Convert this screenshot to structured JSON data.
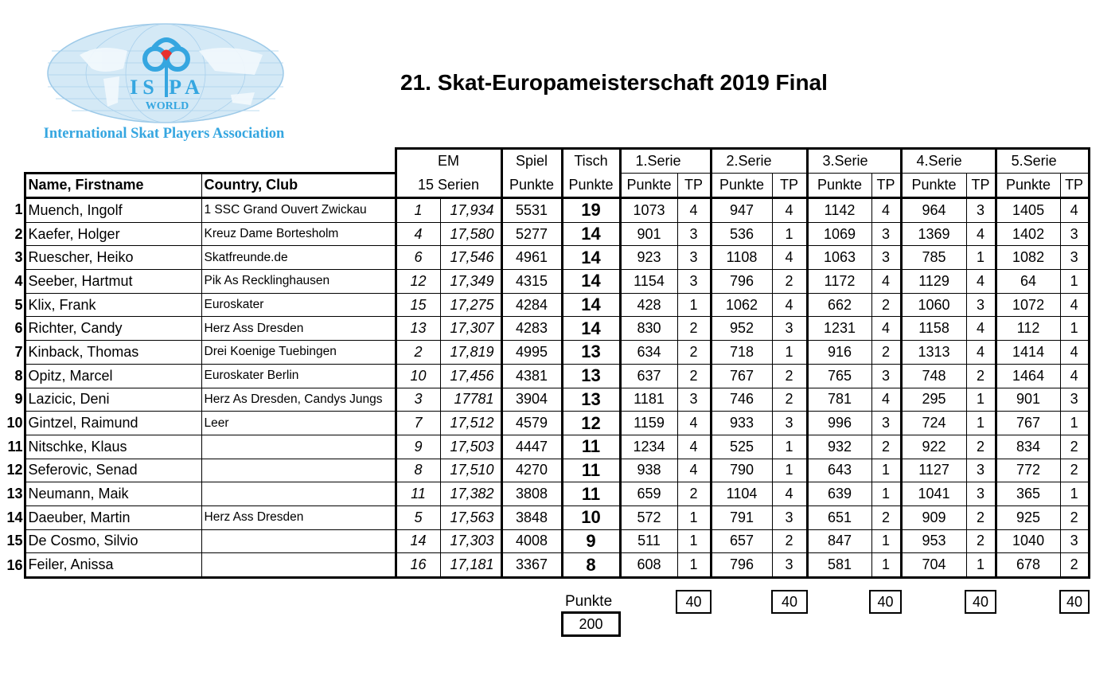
{
  "logo": {
    "top_text": "ISPA",
    "sub_text": "WORLD",
    "org_name": "International Skat Players Association",
    "colors": {
      "blue": "#35a6e0",
      "heart": "#e8312e",
      "map": "#d4e9f6"
    }
  },
  "title": "21. Skat-Europameisterschaft 2019 Final",
  "headers": {
    "em_top": "EM",
    "em_bottom": "15 Serien",
    "spiel_top": "Spiel",
    "spiel_bottom": "Punkte",
    "tisch_top": "Tisch",
    "tisch_bottom": "Punkte",
    "name": "Name, Firstname",
    "club": "Country, Club",
    "series": [
      "1.Serie",
      "2.Serie",
      "3.Serie",
      "4.Serie",
      "5.Serie"
    ],
    "series_points": "Punkte",
    "series_tp": "TP"
  },
  "rows": [
    {
      "rank": "1",
      "name": "Muench, Ingolf",
      "club": "1 SSC Grand Ouvert Zwickau",
      "em_rank": "1",
      "em_score": "17,934",
      "spiel": "5531",
      "tisch": "19",
      "series": [
        [
          "1073",
          "4"
        ],
        [
          "947",
          "4"
        ],
        [
          "1142",
          "4"
        ],
        [
          "964",
          "3"
        ],
        [
          "1405",
          "4"
        ]
      ]
    },
    {
      "rank": "2",
      "name": "Kaefer, Holger",
      "club": "Kreuz Dame Bortesholm",
      "em_rank": "4",
      "em_score": "17,580",
      "spiel": "5277",
      "tisch": "14",
      "series": [
        [
          "901",
          "3"
        ],
        [
          "536",
          "1"
        ],
        [
          "1069",
          "3"
        ],
        [
          "1369",
          "4"
        ],
        [
          "1402",
          "3"
        ]
      ]
    },
    {
      "rank": "3",
      "name": "Ruescher, Heiko",
      "club": "Skatfreunde.de",
      "em_rank": "6",
      "em_score": "17,546",
      "spiel": "4961",
      "tisch": "14",
      "series": [
        [
          "923",
          "3"
        ],
        [
          "1108",
          "4"
        ],
        [
          "1063",
          "3"
        ],
        [
          "785",
          "1"
        ],
        [
          "1082",
          "3"
        ]
      ]
    },
    {
      "rank": "4",
      "name": "Seeber, Hartmut",
      "club": "Pik  As Recklinghausen",
      "em_rank": "12",
      "em_score": "17,349",
      "spiel": "4315",
      "tisch": "14",
      "series": [
        [
          "1154",
          "3"
        ],
        [
          "796",
          "2"
        ],
        [
          "1172",
          "4"
        ],
        [
          "1129",
          "4"
        ],
        [
          "64",
          "1"
        ]
      ]
    },
    {
      "rank": "5",
      "name": "Klix, Frank",
      "club": "Euroskater",
      "em_rank": "15",
      "em_score": "17,275",
      "spiel": "4284",
      "tisch": "14",
      "series": [
        [
          "428",
          "1"
        ],
        [
          "1062",
          "4"
        ],
        [
          "662",
          "2"
        ],
        [
          "1060",
          "3"
        ],
        [
          "1072",
          "4"
        ]
      ]
    },
    {
      "rank": "6",
      "name": "Richter, Candy",
      "club": "Herz Ass Dresden",
      "em_rank": "13",
      "em_score": "17,307",
      "spiel": "4283",
      "tisch": "14",
      "series": [
        [
          "830",
          "2"
        ],
        [
          "952",
          "3"
        ],
        [
          "1231",
          "4"
        ],
        [
          "1158",
          "4"
        ],
        [
          "112",
          "1"
        ]
      ]
    },
    {
      "rank": "7",
      "name": "Kinback, Thomas",
      "club": "Drei Koenige Tuebingen",
      "em_rank": "2",
      "em_score": "17,819",
      "spiel": "4995",
      "tisch": "13",
      "series": [
        [
          "634",
          "2"
        ],
        [
          "718",
          "1"
        ],
        [
          "916",
          "2"
        ],
        [
          "1313",
          "4"
        ],
        [
          "1414",
          "4"
        ]
      ]
    },
    {
      "rank": "8",
      "name": "Opitz, Marcel",
      "club": "Euroskater Berlin",
      "em_rank": "10",
      "em_score": "17,456",
      "spiel": "4381",
      "tisch": "13",
      "series": [
        [
          "637",
          "2"
        ],
        [
          "767",
          "2"
        ],
        [
          "765",
          "3"
        ],
        [
          "748",
          "2"
        ],
        [
          "1464",
          "4"
        ]
      ]
    },
    {
      "rank": "9",
      "name": "Lazicic, Deni",
      "club": "Herz As Dresden, Candys Jungs",
      "em_rank": "3",
      "em_score": "17781",
      "spiel": "3904",
      "tisch": "13",
      "series": [
        [
          "1181",
          "3"
        ],
        [
          "746",
          "2"
        ],
        [
          "781",
          "4"
        ],
        [
          "295",
          "1"
        ],
        [
          "901",
          "3"
        ]
      ]
    },
    {
      "rank": "10",
      "name": "Gintzel, Raimund",
      "club": "Leer",
      "em_rank": "7",
      "em_score": "17,512",
      "spiel": "4579",
      "tisch": "12",
      "series": [
        [
          "1159",
          "4"
        ],
        [
          "933",
          "3"
        ],
        [
          "996",
          "3"
        ],
        [
          "724",
          "1"
        ],
        [
          "767",
          "1"
        ]
      ]
    },
    {
      "rank": "11",
      "name": "Nitschke, Klaus",
      "club": "",
      "em_rank": "9",
      "em_score": "17,503",
      "spiel": "4447",
      "tisch": "11",
      "series": [
        [
          "1234",
          "4"
        ],
        [
          "525",
          "1"
        ],
        [
          "932",
          "2"
        ],
        [
          "922",
          "2"
        ],
        [
          "834",
          "2"
        ]
      ]
    },
    {
      "rank": "12",
      "name": "Seferovic, Senad",
      "club": "",
      "em_rank": "8",
      "em_score": "17,510",
      "spiel": "4270",
      "tisch": "11",
      "series": [
        [
          "938",
          "4"
        ],
        [
          "790",
          "1"
        ],
        [
          "643",
          "1"
        ],
        [
          "1127",
          "3"
        ],
        [
          "772",
          "2"
        ]
      ]
    },
    {
      "rank": "13",
      "name": "Neumann, Maik",
      "club": "",
      "em_rank": "11",
      "em_score": "17,382",
      "spiel": "3808",
      "tisch": "11",
      "series": [
        [
          "659",
          "2"
        ],
        [
          "1104",
          "4"
        ],
        [
          "639",
          "1"
        ],
        [
          "1041",
          "3"
        ],
        [
          "365",
          "1"
        ]
      ]
    },
    {
      "rank": "14",
      "name": "Daeuber, Martin",
      "club": "Herz Ass Dresden",
      "em_rank": "5",
      "em_score": "17,563",
      "spiel": "3848",
      "tisch": "10",
      "series": [
        [
          "572",
          "1"
        ],
        [
          "791",
          "3"
        ],
        [
          "651",
          "2"
        ],
        [
          "909",
          "2"
        ],
        [
          "925",
          "2"
        ]
      ]
    },
    {
      "rank": "15",
      "name": "De Cosmo, Silvio",
      "club": "",
      "em_rank": "14",
      "em_score": "17,303",
      "spiel": "4008",
      "tisch": "9",
      "series": [
        [
          "511",
          "1"
        ],
        [
          "657",
          "2"
        ],
        [
          "847",
          "1"
        ],
        [
          "953",
          "2"
        ],
        [
          "1040",
          "3"
        ]
      ]
    },
    {
      "rank": "16",
      "name": "Feiler, Anissa",
      "club": "",
      "em_rank": "16",
      "em_score": "17,181",
      "spiel": "3367",
      "tisch": "8",
      "series": [
        [
          "608",
          "1"
        ],
        [
          "796",
          "3"
        ],
        [
          "581",
          "1"
        ],
        [
          "704",
          "1"
        ],
        [
          "678",
          "2"
        ]
      ]
    }
  ],
  "footer": {
    "label": "Punkte",
    "total": "200",
    "series_tp_totals": [
      "40",
      "40",
      "40",
      "40",
      "40"
    ]
  }
}
